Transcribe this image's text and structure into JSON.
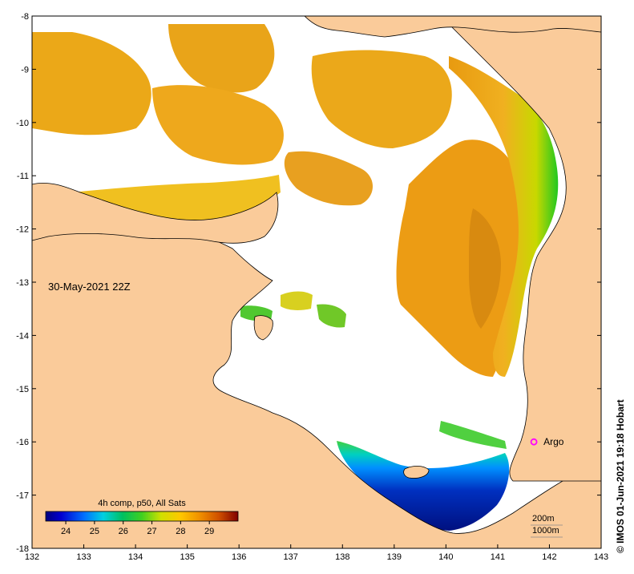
{
  "map": {
    "date_label": "30-May-2021 22Z",
    "credit": "© IMOS 01-Jun-2021 19:18 Hobart",
    "longitude_ticks": [
      "132",
      "133",
      "134",
      "135",
      "136",
      "137",
      "138",
      "139",
      "140",
      "141",
      "142",
      "143"
    ],
    "latitude_ticks": [
      "-8",
      "-9",
      "-10",
      "-11",
      "-12",
      "-13",
      "-14",
      "-15",
      "-16",
      "-17",
      "-18"
    ],
    "lon_range": [
      132,
      143
    ],
    "lat_range": [
      -18,
      -8
    ],
    "land_color": "#facb9a",
    "no_data_color": "#ffffff",
    "argo": {
      "label": "Argo",
      "lon": 141.7,
      "lat": -16.0,
      "color": "#ff00ff"
    },
    "colorbar": {
      "title": "4h comp, p50, All Sats",
      "ticks": [
        "24",
        "25",
        "26",
        "27",
        "28",
        "29"
      ],
      "range": [
        23.3,
        30.0
      ],
      "colors": [
        "#00007f",
        "#0000ff",
        "#0080ff",
        "#00e0e0",
        "#00c878",
        "#30d020",
        "#c8e000",
        "#ffd000",
        "#f0a000",
        "#d05000",
        "#800000"
      ]
    },
    "depth_contours": [
      "200m",
      "1000m"
    ]
  }
}
